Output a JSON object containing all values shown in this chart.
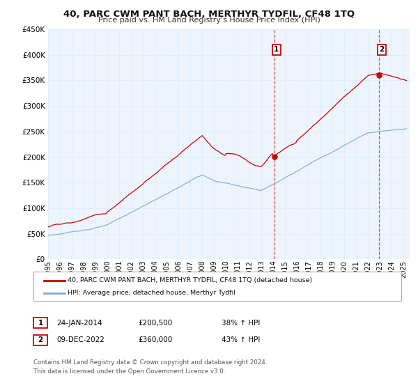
{
  "title": "40, PARC CWM PANT BACH, MERTHYR TYDFIL, CF48 1TQ",
  "subtitle": "Price paid vs. HM Land Registry's House Price Index (HPI)",
  "legend_line1": "40, PARC CWM PANT BACH, MERTHYR TYDFIL, CF48 1TQ (detached house)",
  "legend_line2": "HPI: Average price, detached house, Merthyr Tydfil",
  "annotation1_date": "24-JAN-2014",
  "annotation1_price": "£200,500",
  "annotation1_hpi": "38% ↑ HPI",
  "annotation2_date": "09-DEC-2022",
  "annotation2_price": "£360,000",
  "annotation2_hpi": "43% ↑ HPI",
  "footer_line1": "Contains HM Land Registry data © Crown copyright and database right 2024.",
  "footer_line2": "This data is licensed under the Open Government Licence v3.0.",
  "red_color": "#cc0000",
  "blue_color": "#7aadcf",
  "marker1_date_num": 2014.07,
  "marker1_value": 200500,
  "marker2_date_num": 2022.94,
  "marker2_value": 360000,
  "vline1_date_num": 2014.07,
  "vline2_date_num": 2022.94,
  "ylim": [
    0,
    450000
  ],
  "xlim_start": 1995.0,
  "xlim_end": 2025.5,
  "grid_color": "#ddeeff",
  "background_color": "#eef4fb"
}
